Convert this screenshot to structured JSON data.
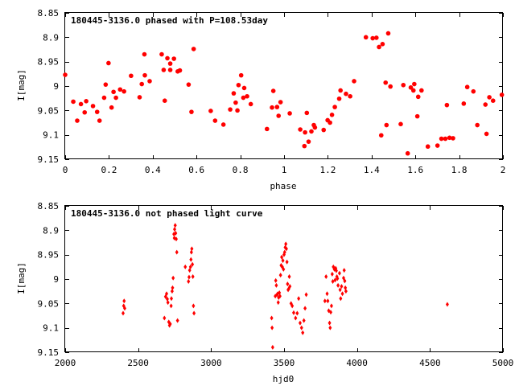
{
  "chart_data": [
    {
      "type": "scatter",
      "title": "180445-3136.0 phased with P=108.53day",
      "xlabel": "phase",
      "ylabel": "I[mag]",
      "xlim": [
        0,
        2
      ],
      "ylim": [
        9.15,
        8.85
      ],
      "y_reversed": true,
      "xticks": [
        "0",
        "0.2",
        "0.4",
        "0.6",
        "0.8",
        "1",
        "1.2",
        "1.4",
        "1.6",
        "1.8",
        "2"
      ],
      "yticks": [
        "8.85",
        "8.9",
        "8.95",
        "9",
        "9.05",
        "9.1",
        "9.15"
      ],
      "marker": "filled-circle",
      "color": "#ff0000",
      "points": [
        [
          0.0,
          8.977
        ],
        [
          0.037,
          9.032
        ],
        [
          0.055,
          9.071
        ],
        [
          0.072,
          9.037
        ],
        [
          0.089,
          9.054
        ],
        [
          0.096,
          9.031
        ],
        [
          0.127,
          9.041
        ],
        [
          0.146,
          9.053
        ],
        [
          0.157,
          9.071
        ],
        [
          0.178,
          9.024
        ],
        [
          0.185,
          8.997
        ],
        [
          0.198,
          8.953
        ],
        [
          0.212,
          9.044
        ],
        [
          0.221,
          9.012
        ],
        [
          0.232,
          9.024
        ],
        [
          0.251,
          9.007
        ],
        [
          0.269,
          9.011
        ],
        [
          0.301,
          8.979
        ],
        [
          0.34,
          9.023
        ],
        [
          0.35,
          8.996
        ],
        [
          0.362,
          8.935
        ],
        [
          0.364,
          8.978
        ],
        [
          0.386,
          8.99
        ],
        [
          0.441,
          8.935
        ],
        [
          0.45,
          8.967
        ],
        [
          0.455,
          9.03
        ],
        [
          0.467,
          8.943
        ],
        [
          0.48,
          8.954
        ],
        [
          0.48,
          8.967
        ],
        [
          0.497,
          8.944
        ],
        [
          0.514,
          8.97
        ],
        [
          0.524,
          8.968
        ],
        [
          0.564,
          8.997
        ],
        [
          0.577,
          9.053
        ],
        [
          0.587,
          8.924
        ],
        [
          0.665,
          9.051
        ],
        [
          0.685,
          9.071
        ],
        [
          0.723,
          9.079
        ],
        [
          0.754,
          9.048
        ],
        [
          0.77,
          9.015
        ],
        [
          0.779,
          9.034
        ],
        [
          0.787,
          9.05
        ],
        [
          0.792,
          8.998
        ],
        [
          0.804,
          8.978
        ],
        [
          0.814,
          9.024
        ],
        [
          0.818,
          9.004
        ],
        [
          0.831,
          9.021
        ],
        [
          0.848,
          9.037
        ],
        [
          0.922,
          9.088
        ],
        [
          0.945,
          9.044
        ],
        [
          0.951,
          9.01
        ],
        [
          0.968,
          9.043
        ],
        [
          0.975,
          9.061
        ],
        [
          0.984,
          9.033
        ],
        [
          1.026,
          9.056
        ],
        [
          1.074,
          9.089
        ],
        [
          1.093,
          9.123
        ],
        [
          1.096,
          9.095
        ],
        [
          1.104,
          9.055
        ],
        [
          1.112,
          9.114
        ],
        [
          1.125,
          9.093
        ],
        [
          1.136,
          9.08
        ],
        [
          1.141,
          9.085
        ],
        [
          1.181,
          9.09
        ],
        [
          1.199,
          9.07
        ],
        [
          1.21,
          9.075
        ],
        [
          1.219,
          9.059
        ],
        [
          1.232,
          9.043
        ],
        [
          1.252,
          9.026
        ],
        [
          1.258,
          9.009
        ],
        [
          1.283,
          9.016
        ],
        [
          1.302,
          9.021
        ],
        [
          1.32,
          8.99
        ],
        [
          1.374,
          8.9
        ],
        [
          1.405,
          8.902
        ],
        [
          1.422,
          8.901
        ],
        [
          1.434,
          8.92
        ],
        [
          1.45,
          8.914
        ],
        [
          1.444,
          9.101
        ],
        [
          1.464,
          8.993
        ],
        [
          1.468,
          9.08
        ],
        [
          1.476,
          8.892
        ],
        [
          1.486,
          9.001
        ],
        [
          1.533,
          9.078
        ],
        [
          1.545,
          8.998
        ],
        [
          1.565,
          9.138
        ],
        [
          1.579,
          9.003
        ],
        [
          1.591,
          9.009
        ],
        [
          1.595,
          8.996
        ],
        [
          1.609,
          9.062
        ],
        [
          1.613,
          9.022
        ],
        [
          1.628,
          9.009
        ],
        [
          1.657,
          9.124
        ],
        [
          1.701,
          9.122
        ],
        [
          1.719,
          9.108
        ],
        [
          1.737,
          9.108
        ],
        [
          1.744,
          9.039
        ],
        [
          1.756,
          9.106
        ],
        [
          1.772,
          9.107
        ],
        [
          1.821,
          9.036
        ],
        [
          1.837,
          9.002
        ],
        [
          1.865,
          9.011
        ],
        [
          1.883,
          9.08
        ],
        [
          1.92,
          9.038
        ],
        [
          1.925,
          9.098
        ],
        [
          1.938,
          9.023
        ],
        [
          1.955,
          9.03
        ],
        [
          1.995,
          9.018
        ]
      ]
    },
    {
      "type": "scatter",
      "title": "180445-3136.0 not phased light curve",
      "xlabel": "hjd0",
      "ylabel": "I[mag]",
      "xlim": [
        2000,
        5000
      ],
      "ylim": [
        9.15,
        8.85
      ],
      "y_reversed": true,
      "xticks": [
        "2000",
        "2500",
        "3000",
        "3500",
        "4000",
        "4500",
        "5000"
      ],
      "yticks": [
        "8.85",
        "8.9",
        "8.95",
        "9",
        "9.05",
        "9.1",
        "9.15"
      ],
      "marker": "small-diamond",
      "color": "#ff0000",
      "points": [
        [
          2397,
          9.07
        ],
        [
          2401,
          9.055
        ],
        [
          2404,
          9.045
        ],
        [
          2408,
          9.06
        ],
        [
          2680,
          9.08
        ],
        [
          2688,
          9.036
        ],
        [
          2695,
          9.03
        ],
        [
          2700,
          9.041
        ],
        [
          2704,
          9.048
        ],
        [
          2710,
          9.088
        ],
        [
          2715,
          9.095
        ],
        [
          2720,
          9.092
        ],
        [
          2726,
          9.055
        ],
        [
          2728,
          9.04
        ],
        [
          2733,
          9.025
        ],
        [
          2736,
          9.018
        ],
        [
          2740,
          8.998
        ],
        [
          2745,
          8.908
        ],
        [
          2748,
          8.916
        ],
        [
          2750,
          8.898
        ],
        [
          2754,
          8.89
        ],
        [
          2757,
          8.906
        ],
        [
          2761,
          8.918
        ],
        [
          2765,
          8.945
        ],
        [
          2770,
          9.085
        ],
        [
          2823,
          8.975
        ],
        [
          2845,
          9.005
        ],
        [
          2849,
          8.996
        ],
        [
          2853,
          8.982
        ],
        [
          2859,
          8.975
        ],
        [
          2862,
          8.96
        ],
        [
          2865,
          8.945
        ],
        [
          2868,
          8.938
        ],
        [
          2872,
          8.97
        ],
        [
          2875,
          8.995
        ],
        [
          2879,
          9.055
        ],
        [
          2883,
          9.07
        ],
        [
          3415,
          9.08
        ],
        [
          3418,
          9.1
        ],
        [
          3422,
          9.14
        ],
        [
          3440,
          9.035
        ],
        [
          3443,
          9.003
        ],
        [
          3447,
          9.013
        ],
        [
          3452,
          9.032
        ],
        [
          3456,
          9.03
        ],
        [
          3460,
          9.048
        ],
        [
          3463,
          9.038
        ],
        [
          3468,
          9.028
        ],
        [
          3472,
          9.035
        ],
        [
          3476,
          8.992
        ],
        [
          3480,
          8.972
        ],
        [
          3484,
          8.955
        ],
        [
          3488,
          8.975
        ],
        [
          3492,
          8.962
        ],
        [
          3496,
          8.98
        ],
        [
          3500,
          8.95
        ],
        [
          3504,
          8.945
        ],
        [
          3508,
          8.935
        ],
        [
          3512,
          8.928
        ],
        [
          3516,
          8.938
        ],
        [
          3520,
          8.965
        ],
        [
          3524,
          9.01
        ],
        [
          3528,
          9.022
        ],
        [
          3532,
          9.02
        ],
        [
          3536,
          8.995
        ],
        [
          3540,
          9.015
        ],
        [
          3548,
          9.05
        ],
        [
          3556,
          9.055
        ],
        [
          3566,
          9.069
        ],
        [
          3579,
          9.08
        ],
        [
          3590,
          9.07
        ],
        [
          3600,
          9.04
        ],
        [
          3610,
          9.09
        ],
        [
          3620,
          9.1
        ],
        [
          3628,
          9.11
        ],
        [
          3636,
          9.085
        ],
        [
          3644,
          9.06
        ],
        [
          3652,
          9.032
        ],
        [
          3780,
          9.045
        ],
        [
          3788,
          8.995
        ],
        [
          3795,
          9.03
        ],
        [
          3800,
          9.045
        ],
        [
          3806,
          9.065
        ],
        [
          3812,
          9.09
        ],
        [
          3816,
          9.1
        ],
        [
          3820,
          9.068
        ],
        [
          3825,
          9.055
        ],
        [
          3830,
          8.99
        ],
        [
          3834,
          9.005
        ],
        [
          3838,
          8.975
        ],
        [
          3845,
          8.98
        ],
        [
          3850,
          9.002
        ],
        [
          3854,
          8.978
        ],
        [
          3858,
          8.983
        ],
        [
          3862,
          8.995
        ],
        [
          3866,
          8.999
        ],
        [
          3870,
          9.013
        ],
        [
          3880,
          8.988
        ],
        [
          3884,
          9.022
        ],
        [
          3888,
          9.04
        ],
        [
          3894,
          9.015
        ],
        [
          3900,
          9.03
        ],
        [
          3908,
          8.998
        ],
        [
          3912,
          8.982
        ],
        [
          3916,
          9.004
        ],
        [
          3920,
          9.018
        ],
        [
          3924,
          9.025
        ],
        [
          4619,
          9.052
        ]
      ]
    }
  ]
}
